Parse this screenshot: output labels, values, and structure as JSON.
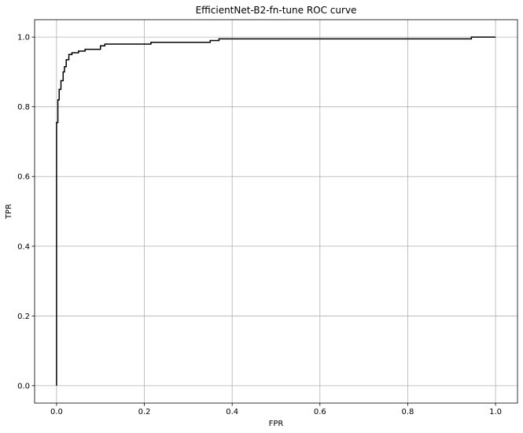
{
  "chart_data": {
    "type": "line",
    "title": "EfficientNet-B2-fn-tune ROC curve",
    "xlabel": "FPR",
    "ylabel": "TPR",
    "xlim": [
      -0.05,
      1.05
    ],
    "ylim": [
      -0.05,
      1.05
    ],
    "grid": true,
    "xticks": [
      0.0,
      0.2,
      0.4,
      0.6,
      0.8,
      1.0
    ],
    "xtick_labels": [
      "0.0",
      "0.2",
      "0.4",
      "0.6",
      "0.8",
      "1.0"
    ],
    "yticks": [
      0.0,
      0.2,
      0.4,
      0.6,
      0.8,
      1.0
    ],
    "ytick_labels": [
      "0.0",
      "0.2",
      "0.4",
      "0.6",
      "0.8",
      "1.0"
    ],
    "series": [
      {
        "color": "#000000",
        "style": "step",
        "x": [
          0.0,
          0.0,
          0.003,
          0.003,
          0.006,
          0.006,
          0.01,
          0.01,
          0.015,
          0.015,
          0.018,
          0.018,
          0.022,
          0.022,
          0.028,
          0.028,
          0.035,
          0.035,
          0.05,
          0.05,
          0.065,
          0.065,
          0.1,
          0.1,
          0.11,
          0.11,
          0.215,
          0.215,
          0.35,
          0.35,
          0.37,
          0.37,
          0.945,
          0.945,
          1.0
        ],
        "y": [
          0.0,
          0.755,
          0.755,
          0.82,
          0.82,
          0.85,
          0.85,
          0.875,
          0.875,
          0.9,
          0.9,
          0.915,
          0.915,
          0.935,
          0.935,
          0.95,
          0.95,
          0.955,
          0.955,
          0.96,
          0.96,
          0.965,
          0.965,
          0.975,
          0.975,
          0.98,
          0.98,
          0.985,
          0.985,
          0.99,
          0.99,
          0.995,
          0.995,
          1.0,
          1.0
        ]
      }
    ]
  }
}
